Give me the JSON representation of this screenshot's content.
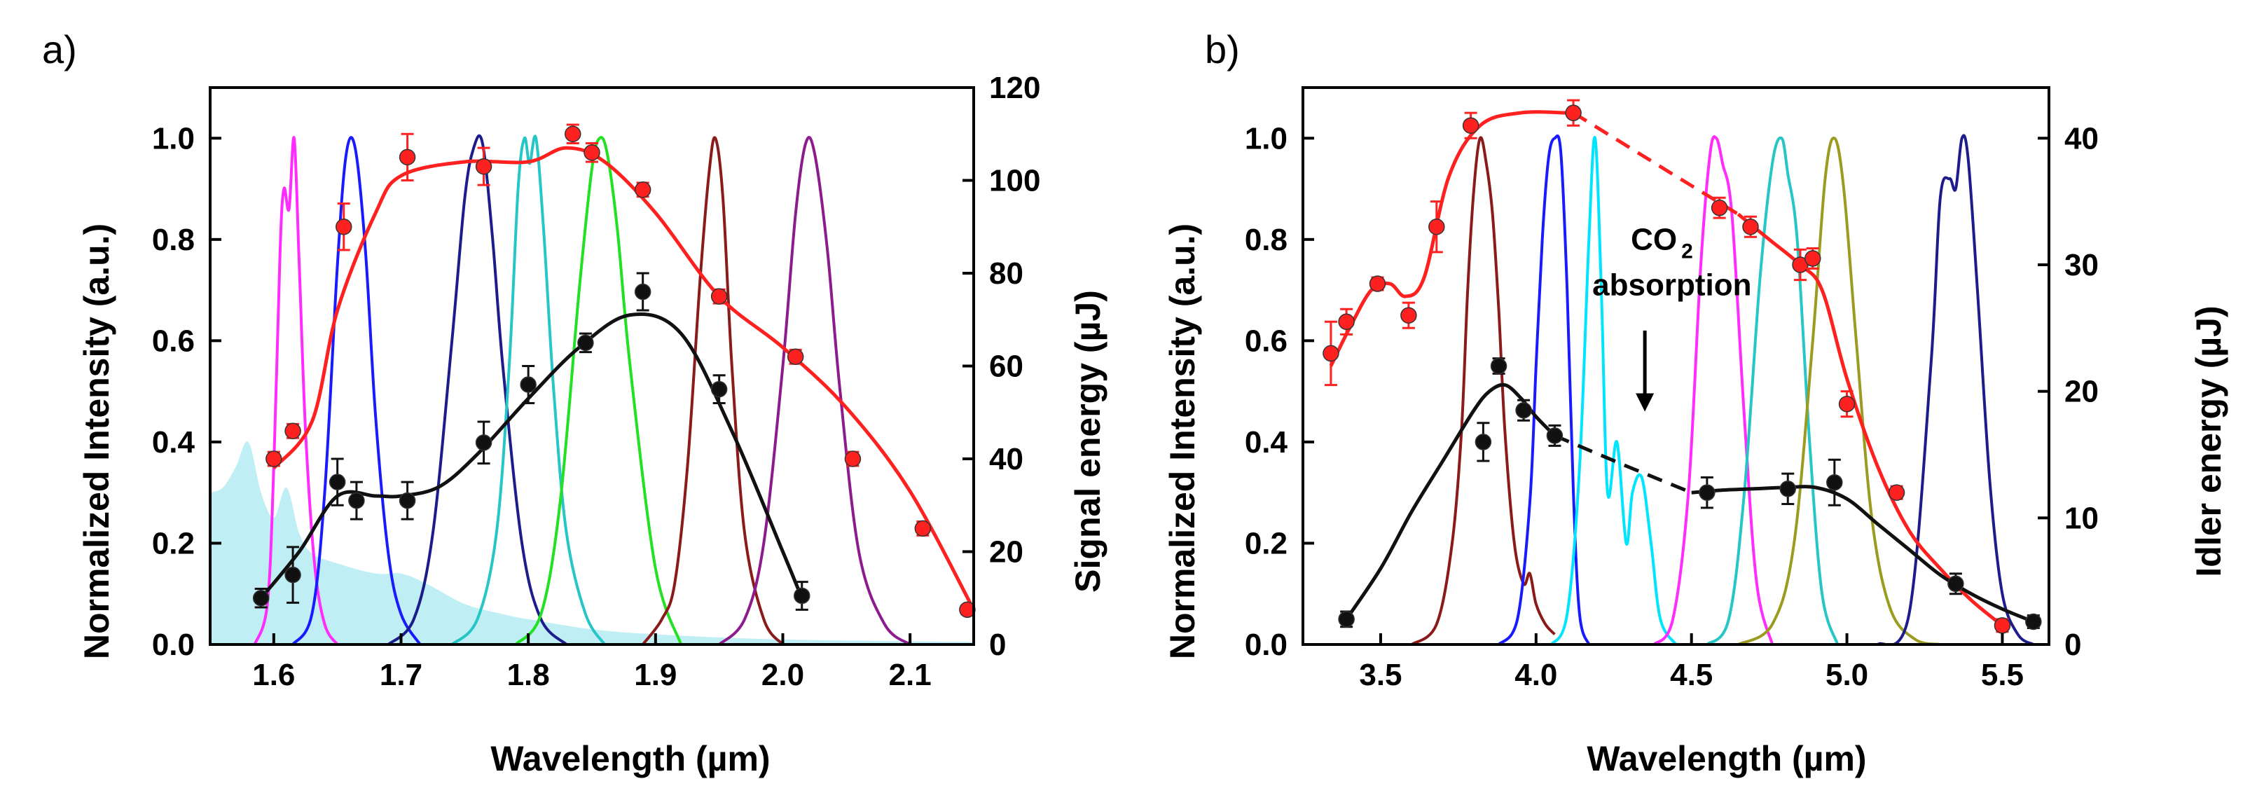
{
  "chart_data": [
    {
      "type": "line",
      "panel_label": "a)",
      "xlabel": "Wavelength (µm)",
      "ylabel": "Normalized Intensity (a.u.)",
      "y2label": "Signal energy (µJ)",
      "xlim": [
        1.55,
        2.15
      ],
      "ylim": [
        0,
        1.1
      ],
      "y2lim": [
        0,
        120
      ],
      "xticks": [
        "1.6",
        "1.7",
        "1.8",
        "1.9",
        "2.0",
        "2.1"
      ],
      "yticks": [
        "0.0",
        "0.2",
        "0.4",
        "0.6",
        "0.8",
        "1.0"
      ],
      "y2ticks": [
        "0",
        "20",
        "40",
        "60",
        "80",
        "100",
        "120"
      ],
      "shaded_spectrum": {
        "color": "#bfeef5",
        "x": [
          1.55,
          1.56,
          1.57,
          1.58,
          1.59,
          1.6,
          1.61,
          1.62,
          1.63,
          1.65,
          1.68,
          1.7,
          1.72,
          1.75,
          1.78,
          1.8,
          1.85,
          1.9,
          2.0,
          2.15
        ],
        "y": [
          0.3,
          0.31,
          0.35,
          0.4,
          0.3,
          0.25,
          0.31,
          0.22,
          0.18,
          0.16,
          0.14,
          0.14,
          0.12,
          0.08,
          0.06,
          0.05,
          0.03,
          0.02,
          0.01,
          0.005
        ]
      },
      "spectra": [
        {
          "name": "1.61 µm",
          "color": "#ff2bff",
          "x": [
            1.585,
            1.595,
            1.6,
            1.605,
            1.608,
            1.612,
            1.616,
            1.62,
            1.625,
            1.632,
            1.64,
            1.65
          ],
          "y": [
            0.0,
            0.08,
            0.35,
            0.78,
            0.9,
            0.86,
            1.0,
            0.75,
            0.42,
            0.16,
            0.04,
            0.0
          ]
        },
        {
          "name": "1.66 µm",
          "color": "#1a1aff",
          "x": [
            1.615,
            1.63,
            1.64,
            1.65,
            1.657,
            1.664,
            1.672,
            1.68,
            1.69,
            1.7,
            1.715
          ],
          "y": [
            0.0,
            0.06,
            0.3,
            0.75,
            0.97,
            0.98,
            0.78,
            0.45,
            0.18,
            0.06,
            0.0
          ]
        },
        {
          "name": "1.76 µm",
          "color": "#1c1c8c",
          "x": [
            1.69,
            1.71,
            1.725,
            1.74,
            1.75,
            1.757,
            1.764,
            1.772,
            1.78,
            1.795,
            1.81,
            1.83
          ],
          "y": [
            0.0,
            0.05,
            0.22,
            0.6,
            0.88,
            0.98,
            0.99,
            0.8,
            0.55,
            0.2,
            0.05,
            0.0
          ]
        },
        {
          "name": "1.80 µm",
          "color": "#26c6c6",
          "x": [
            1.74,
            1.76,
            1.775,
            1.785,
            1.792,
            1.797,
            1.801,
            1.806,
            1.812,
            1.82,
            1.83,
            1.845,
            1.86
          ],
          "y": [
            0.0,
            0.05,
            0.22,
            0.55,
            0.9,
            1.0,
            0.95,
            1.0,
            0.82,
            0.5,
            0.22,
            0.06,
            0.0
          ]
        },
        {
          "name": "1.86 µm",
          "color": "#22e022",
          "x": [
            1.79,
            1.81,
            1.825,
            1.84,
            1.85,
            1.856,
            1.862,
            1.87,
            1.88,
            1.9,
            1.92
          ],
          "y": [
            0.0,
            0.06,
            0.28,
            0.7,
            0.94,
            1.0,
            0.97,
            0.82,
            0.55,
            0.15,
            0.0
          ]
        },
        {
          "name": "1.95 µm",
          "color": "#8b1a1a",
          "x": [
            1.89,
            1.905,
            1.915,
            1.925,
            1.935,
            1.942,
            1.947,
            1.953,
            1.96,
            1.97,
            1.985,
            2.0
          ],
          "y": [
            0.0,
            0.05,
            0.12,
            0.35,
            0.72,
            0.93,
            1.0,
            0.88,
            0.55,
            0.22,
            0.05,
            0.0
          ]
        },
        {
          "name": "2.02 µm",
          "color": "#8e1b8e",
          "x": [
            1.95,
            1.97,
            1.985,
            2.0,
            2.01,
            2.018,
            2.025,
            2.035,
            2.045,
            2.06,
            2.08,
            2.1
          ],
          "y": [
            0.0,
            0.05,
            0.2,
            0.55,
            0.85,
            0.99,
            0.97,
            0.78,
            0.5,
            0.18,
            0.04,
            0.0
          ]
        }
      ],
      "series": [
        {
          "name": "Signal energy (red)",
          "color": "#ff2020",
          "x": [
            1.6,
            1.615,
            1.655,
            1.705,
            1.765,
            1.835,
            1.85,
            1.89,
            1.95,
            2.01,
            2.055,
            2.11,
            2.145
          ],
          "y": [
            40,
            46,
            90,
            105,
            103,
            110,
            106,
            98,
            75,
            62,
            40,
            25,
            7.5
          ],
          "err": [
            1.5,
            1.5,
            5,
            5,
            4,
            2,
            2,
            1.5,
            1.5,
            1.5,
            1.5,
            1.5,
            1
          ],
          "fit_x": [
            1.6,
            1.63,
            1.65,
            1.68,
            1.7,
            1.75,
            1.8,
            1.83,
            1.86,
            1.9,
            1.95,
            2.0,
            2.05,
            2.1,
            2.15
          ],
          "fit_y": [
            38,
            48,
            72,
            93,
            101,
            104,
            104,
            107,
            104,
            93,
            75,
            64,
            51,
            33,
            7.5
          ]
        },
        {
          "name": "Signal energy (black)",
          "color": "#111111",
          "x": [
            1.59,
            1.615,
            1.65,
            1.665,
            1.705,
            1.765,
            1.8,
            1.845,
            1.89,
            1.95,
            2.015
          ],
          "y": [
            10,
            15,
            35,
            31,
            31,
            43.5,
            56,
            65,
            76,
            55,
            10.5
          ],
          "err": [
            2,
            6,
            5,
            4,
            4,
            4.5,
            4,
            2,
            4,
            3,
            3
          ],
          "fit_x": [
            1.59,
            1.62,
            1.65,
            1.68,
            1.7,
            1.73,
            1.76,
            1.8,
            1.84,
            1.88,
            1.92,
            1.96,
            2.0,
            2.015
          ],
          "fit_y": [
            10,
            20,
            32,
            32,
            32,
            34,
            41,
            53,
            64,
            71,
            67,
            46,
            20,
            10
          ]
        }
      ]
    },
    {
      "type": "line",
      "panel_label": "b)",
      "xlabel": "Wavelength (µm)",
      "ylabel": "Normalized Intensity (a.u.)",
      "y2label": "Idler energy (µJ)",
      "xlim": [
        3.25,
        5.65
      ],
      "ylim": [
        0,
        1.1
      ],
      "y2lim": [
        0,
        44
      ],
      "xticks": [
        "3.5",
        "4.0",
        "4.5",
        "5.0",
        "5.5"
      ],
      "yticks": [
        "0.0",
        "0.2",
        "0.4",
        "0.6",
        "0.8",
        "1.0"
      ],
      "y2ticks": [
        "0",
        "10",
        "20",
        "30",
        "40"
      ],
      "annotation": {
        "text": "CO",
        "sub": "2",
        "line2": "absorption",
        "arrow_x": 4.35,
        "arrow_y_top": 0.62,
        "arrow_y_bottom": 0.46
      },
      "spectra": [
        {
          "name": "3.84 µm",
          "color": "#8b1a1a",
          "x": [
            3.6,
            3.68,
            3.73,
            3.76,
            3.78,
            3.8,
            3.82,
            3.84,
            3.86,
            3.88,
            3.9,
            3.93,
            3.96,
            3.98,
            4.0,
            4.03,
            4.06
          ],
          "y": [
            0.0,
            0.04,
            0.2,
            0.42,
            0.7,
            0.9,
            1.0,
            0.95,
            0.85,
            0.66,
            0.42,
            0.2,
            0.12,
            0.14,
            0.08,
            0.04,
            0.02
          ]
        },
        {
          "name": "4.07 µm",
          "color": "#1a1aff",
          "x": [
            3.88,
            3.94,
            3.98,
            4.0,
            4.02,
            4.04,
            4.06,
            4.08,
            4.1,
            4.12,
            4.14,
            4.17
          ],
          "y": [
            0.0,
            0.05,
            0.28,
            0.55,
            0.8,
            0.96,
            1.0,
            0.97,
            0.7,
            0.3,
            0.06,
            0.0
          ]
        },
        {
          "name": "4.19 µm",
          "color": "#00e5ff",
          "x": [
            4.05,
            4.1,
            4.14,
            4.17,
            4.19,
            4.21,
            4.23,
            4.26,
            4.29,
            4.31,
            4.34,
            4.37,
            4.4,
            4.45
          ],
          "y": [
            0.0,
            0.06,
            0.35,
            0.8,
            1.0,
            0.7,
            0.3,
            0.4,
            0.2,
            0.3,
            0.33,
            0.2,
            0.05,
            0.0
          ]
        },
        {
          "name": "4.58 µm",
          "color": "#ff2bff",
          "x": [
            4.38,
            4.44,
            4.49,
            4.53,
            4.56,
            4.58,
            4.6,
            4.63,
            4.67,
            4.71,
            4.76
          ],
          "y": [
            0.0,
            0.05,
            0.3,
            0.75,
            0.97,
            1.0,
            0.95,
            0.85,
            0.45,
            0.12,
            0.0
          ]
        },
        {
          "name": "4.79 µm",
          "color": "#26c6c6",
          "x": [
            4.55,
            4.62,
            4.67,
            4.72,
            4.76,
            4.79,
            4.81,
            4.84,
            4.88,
            4.92,
            4.97
          ],
          "y": [
            0.0,
            0.05,
            0.3,
            0.72,
            0.95,
            1.0,
            0.93,
            0.8,
            0.4,
            0.1,
            0.0
          ]
        },
        {
          "name": "4.96 µm",
          "color": "#9b9b20",
          "x": [
            4.65,
            4.76,
            4.83,
            4.89,
            4.93,
            4.96,
            4.99,
            5.03,
            5.08,
            5.14,
            5.22,
            5.3
          ],
          "y": [
            0.0,
            0.04,
            0.2,
            0.6,
            0.92,
            1.0,
            0.9,
            0.6,
            0.25,
            0.07,
            0.01,
            0.0
          ]
        },
        {
          "name": "5.37 µm",
          "color": "#1c1c8c",
          "x": [
            5.1,
            5.2,
            5.27,
            5.3,
            5.33,
            5.35,
            5.37,
            5.39,
            5.42,
            5.46,
            5.5,
            5.55,
            5.6
          ],
          "y": [
            0.0,
            0.06,
            0.55,
            0.88,
            0.92,
            0.9,
            1.0,
            0.96,
            0.7,
            0.32,
            0.1,
            0.02,
            0.0
          ]
        }
      ],
      "series": [
        {
          "name": "Idler energy (red)",
          "color": "#ff2020",
          "x": [
            3.34,
            3.39,
            3.49,
            3.59,
            3.68,
            3.79,
            4.12,
            4.59,
            4.69,
            4.85,
            4.89,
            5.0,
            5.16,
            5.5
          ],
          "y": [
            23,
            25.5,
            28.5,
            26,
            33,
            41,
            42,
            34.5,
            33,
            30,
            30.5,
            19,
            12,
            1.5
          ],
          "err": [
            2.5,
            1,
            0.5,
            1,
            2,
            1,
            1,
            0.8,
            0.8,
            1.2,
            0.8,
            1,
            0.5,
            0.5
          ],
          "fit_x": [
            3.34,
            3.4,
            3.47,
            3.53,
            3.58,
            3.64,
            3.72,
            3.82,
            3.95,
            4.1,
            4.12
          ],
          "fit_y": [
            22,
            25,
            28,
            28.5,
            27.5,
            29,
            37,
            41,
            42,
            42,
            42
          ],
          "dash_x": [
            4.12,
            4.45,
            4.65
          ],
          "dash_y": [
            42,
            37,
            34
          ],
          "fit2_x": [
            4.65,
            4.75,
            4.85,
            4.92,
            5.0,
            5.1,
            5.2,
            5.3,
            5.4,
            5.5
          ],
          "fit2_y": [
            34,
            32,
            30,
            28,
            21,
            14,
            9,
            6,
            3.5,
            1.5
          ]
        },
        {
          "name": "Idler energy (black)",
          "color": "#111111",
          "x": [
            3.39,
            3.83,
            3.88,
            3.96,
            4.06,
            4.55,
            4.81,
            4.96,
            5.35,
            5.6
          ],
          "y": [
            2,
            16,
            22,
            18.5,
            16.5,
            12,
            12.3,
            12.8,
            4.8,
            1.8
          ],
          "err": [
            0.6,
            1.5,
            0.6,
            0.8,
            0.8,
            1.2,
            1.2,
            1.8,
            0.8,
            0.5
          ],
          "fit_x": [
            3.39,
            3.5,
            3.6,
            3.7,
            3.8,
            3.85,
            3.9,
            3.95,
            4.0,
            4.06
          ],
          "fit_y": [
            2,
            6,
            10.5,
            14.5,
            18.5,
            20,
            20.5,
            19.5,
            18,
            16.5
          ],
          "dash_x": [
            4.06,
            4.3,
            4.5
          ],
          "dash_y": [
            16.5,
            14,
            12
          ],
          "fit2_x": [
            4.5,
            4.6,
            4.7,
            4.8,
            4.9,
            5.0,
            5.1,
            5.2,
            5.3,
            5.4,
            5.5,
            5.6
          ],
          "fit2_y": [
            12,
            12.2,
            12.3,
            12.4,
            12.4,
            11.5,
            9.5,
            7.5,
            5.5,
            4,
            2.8,
            1.8
          ]
        }
      ]
    }
  ]
}
